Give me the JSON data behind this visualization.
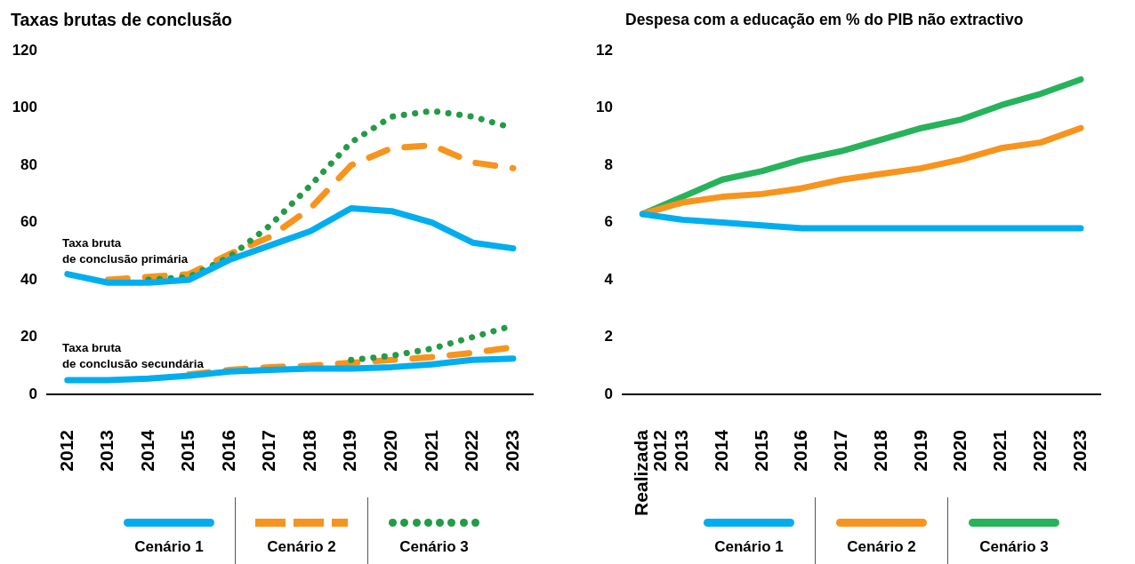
{
  "chart_data": [
    {
      "type": "line",
      "title": "Taxas brutas de conclusão",
      "categories": [
        "2012",
        "2013",
        "2014",
        "2015",
        "2016",
        "2017",
        "2018",
        "2019",
        "2020",
        "2021",
        "2022",
        "2023"
      ],
      "series": [
        {
          "name": "Cenário 1",
          "color": "#00aeef",
          "line_style": "solid",
          "values": [
            42,
            39,
            39,
            40,
            47,
            52,
            57,
            65,
            64,
            60,
            53,
            51
          ]
        },
        {
          "color": "#00aeef",
          "line_style": "solid",
          "values": [
            5,
            5,
            5.5,
            6.5,
            8,
            8.5,
            9,
            9,
            9.5,
            10.5,
            12,
            12.5
          ]
        },
        {
          "name": "Cenário 2",
          "color": "#f7941d",
          "line_style": "dashed",
          "values": [
            null,
            40,
            41,
            42,
            49,
            55,
            65,
            80,
            86,
            87,
            81,
            79
          ]
        },
        {
          "color": "#f7941d",
          "line_style": "dashed",
          "values": [
            null,
            null,
            null,
            7,
            8.5,
            9.5,
            10,
            11,
            12,
            13,
            14.5,
            16.5
          ]
        },
        {
          "name": "Cenário 3",
          "color": "#239b47",
          "line_style": "dotted",
          "values": [
            null,
            null,
            40,
            41,
            48,
            59,
            73,
            88,
            97,
            99,
            97,
            93
          ]
        },
        {
          "color": "#239b47",
          "line_style": "dotted",
          "values": [
            null,
            null,
            null,
            null,
            null,
            null,
            null,
            12,
            13.5,
            16,
            20,
            24
          ]
        }
      ],
      "annotations": [
        "Taxa bruta\nde conclusão primária",
        "Taxa bruta\nde conclusão secundária"
      ],
      "ylim": [
        0,
        120
      ],
      "yticks": [
        0,
        20,
        40,
        60,
        80,
        100,
        120
      ],
      "legend": "bottom",
      "marker": "none"
    },
    {
      "type": "line",
      "title": "Despesa com a educação em % do PIB não extractivo",
      "categories": [
        "Realizada\n2012",
        "2013",
        "2014",
        "2015",
        "2016",
        "2017",
        "2018",
        "2019",
        "2020",
        "2021",
        "2022",
        "2023"
      ],
      "series": [
        {
          "name": "Cenário 1",
          "color": "#00aeef",
          "line_style": "solid",
          "values": [
            6.3,
            6.1,
            6,
            5.9,
            5.8,
            5.8,
            5.8,
            5.8,
            5.8,
            5.8,
            5.8,
            5.8
          ]
        },
        {
          "name": "Cenário 2",
          "color": "#f7941d",
          "line_style": "solid",
          "values": [
            6.3,
            6.7,
            6.9,
            7,
            7.2,
            7.5,
            7.7,
            7.9,
            8.2,
            8.6,
            8.8,
            9.3
          ]
        },
        {
          "name": "Cenário 3",
          "color": "#27b35b",
          "line_style": "solid",
          "values": [
            6.3,
            6.9,
            7.5,
            7.8,
            8.2,
            8.5,
            8.9,
            9.3,
            9.6,
            10.1,
            10.5,
            11
          ]
        }
      ],
      "ylim": [
        0,
        12
      ],
      "yticks": [
        0,
        2,
        4,
        6,
        8,
        10,
        12
      ],
      "legend": "bottom",
      "marker": "none"
    }
  ]
}
